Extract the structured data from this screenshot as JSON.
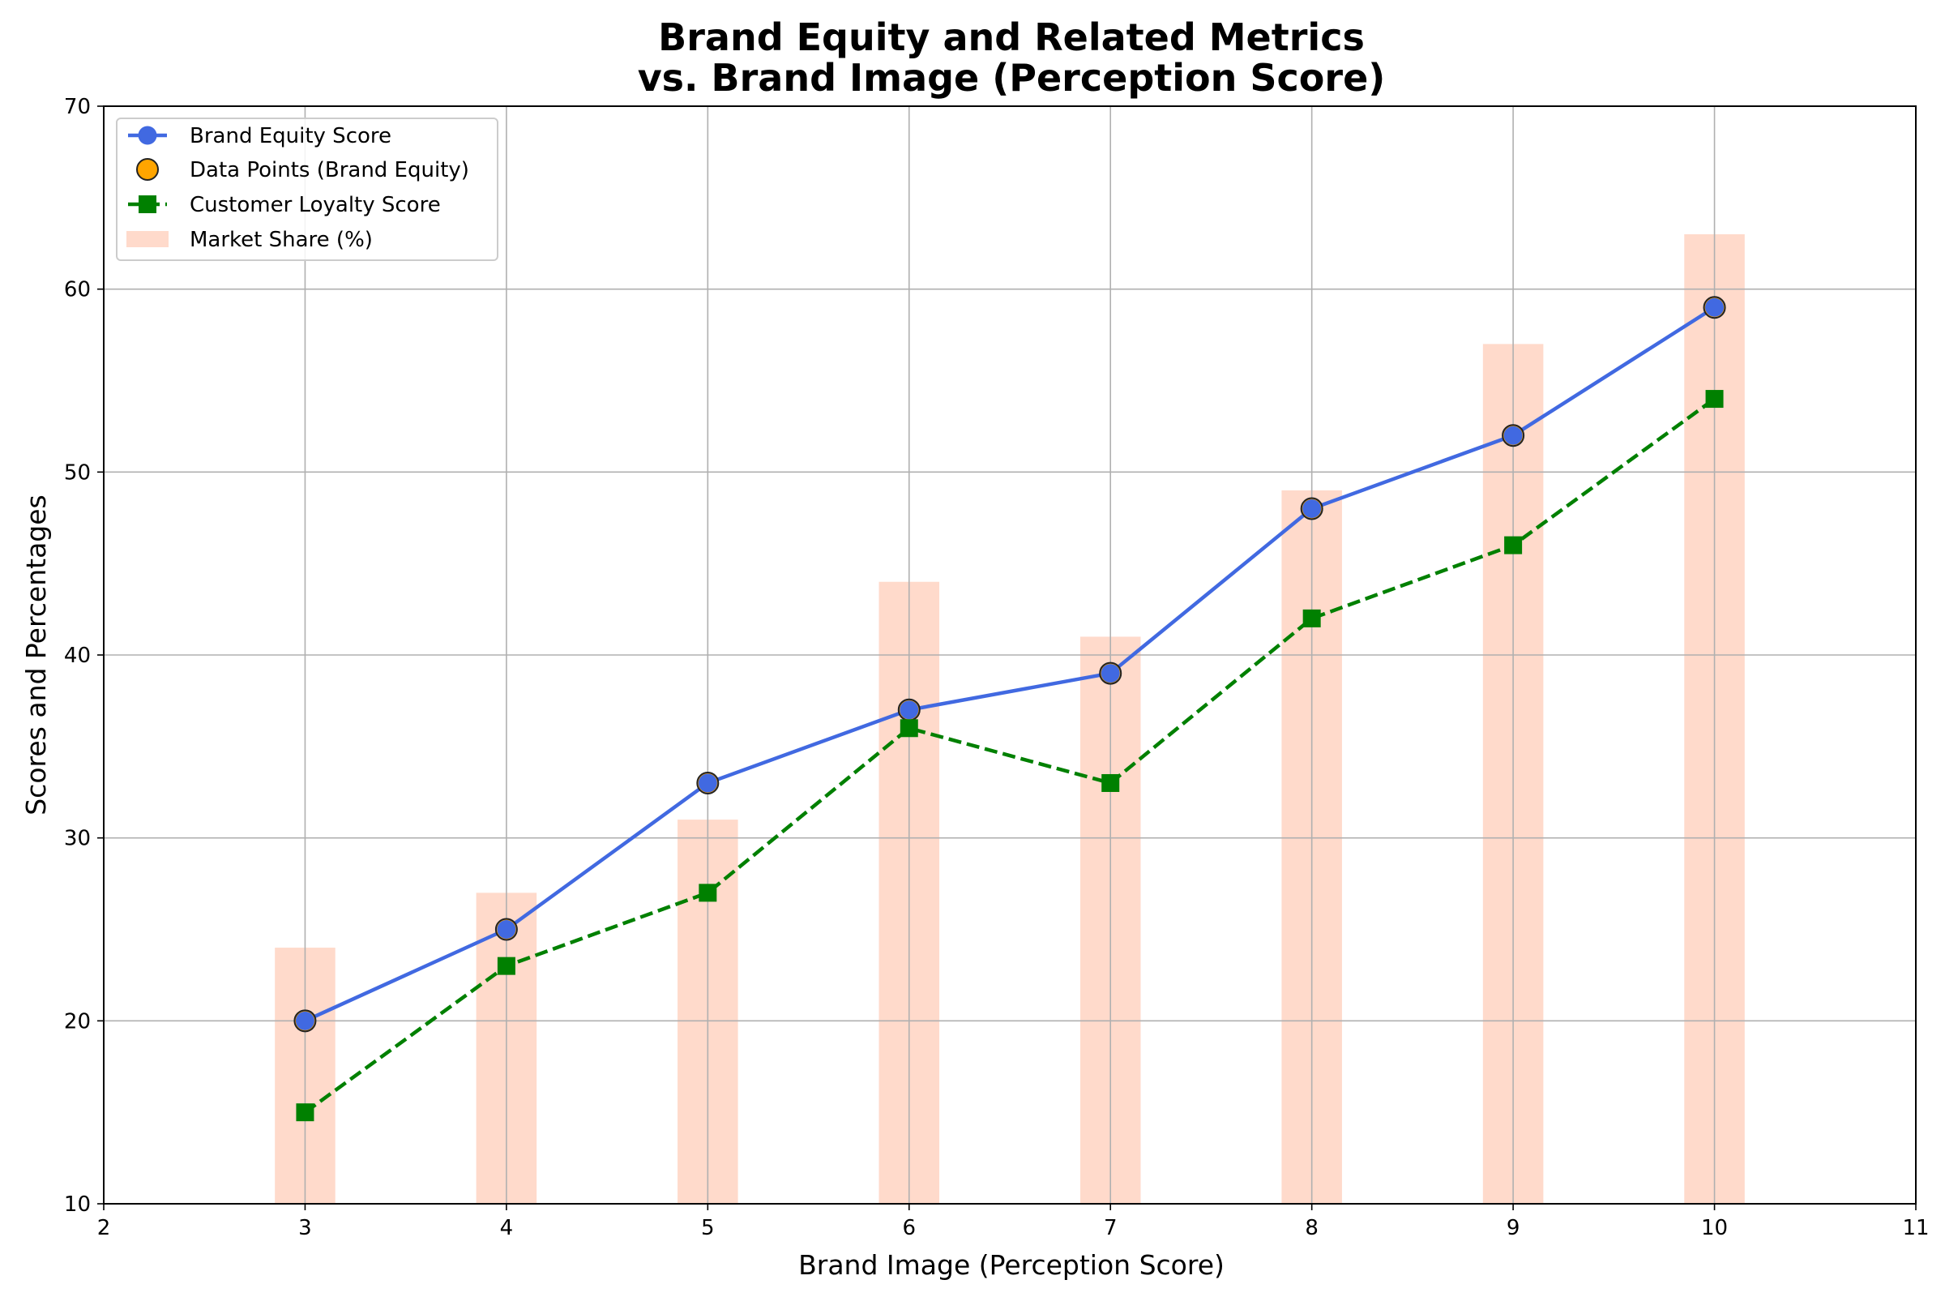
{
  "chart_data": {
    "type": "line",
    "title": [
      "Brand Equity and Related Metrics",
      "vs. Brand Image (Perception Score)"
    ],
    "xlabel": "Brand Image (Perception Score)",
    "ylabel": "Scores and Percentages",
    "xlim": [
      2,
      11
    ],
    "ylim": [
      10,
      70
    ],
    "xticks": [
      2,
      3,
      4,
      5,
      6,
      7,
      8,
      9,
      10,
      11
    ],
    "yticks": [
      10,
      20,
      30,
      40,
      50,
      60,
      70
    ],
    "grid": true,
    "legend_position": "top-left",
    "x": [
      3,
      4,
      5,
      6,
      7,
      8,
      9,
      10
    ],
    "series": [
      {
        "name": "Brand Equity Score",
        "kind": "line",
        "color": "#4169E1",
        "marker": "circle",
        "linestyle": "solid",
        "values": [
          20,
          25,
          33,
          37,
          39,
          48,
          52,
          59
        ]
      },
      {
        "name": "Data Points (Brand Equity)",
        "kind": "scatter",
        "color": "#FFA500",
        "marker": "circle",
        "values": [
          20,
          25,
          33,
          37,
          39,
          48,
          52,
          59
        ]
      },
      {
        "name": "Customer Loyalty Score",
        "kind": "line",
        "color": "#008000",
        "marker": "square",
        "linestyle": "dashed",
        "values": [
          15,
          23,
          27,
          36,
          33,
          42,
          46,
          54
        ]
      },
      {
        "name": "Market Share (%)",
        "kind": "bar",
        "color": "#FFDACB",
        "values": [
          24,
          27,
          31,
          44,
          41,
          49,
          57,
          63
        ]
      }
    ]
  }
}
